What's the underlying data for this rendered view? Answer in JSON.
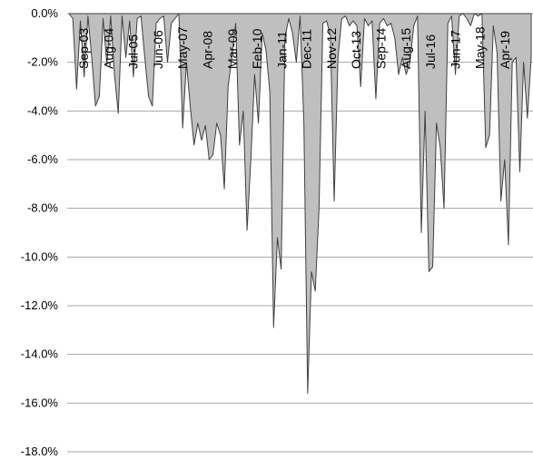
{
  "colors": {
    "fill": "#bfbfbf",
    "stroke": "#404040",
    "grid": "#a6a6a6",
    "background": "#ffffff"
  },
  "chart_data": {
    "type": "area",
    "title": "",
    "xlabel": "",
    "ylabel": "",
    "ylim": [
      -0.18,
      0.0
    ],
    "grid": true,
    "legend": "none",
    "y_ticks": [
      {
        "value": 0.0,
        "label": "0.0%"
      },
      {
        "value": -0.02,
        "label": "-2.0%"
      },
      {
        "value": -0.04,
        "label": "-4.0%"
      },
      {
        "value": -0.06,
        "label": "-6.0%"
      },
      {
        "value": -0.08,
        "label": "-8.0%"
      },
      {
        "value": -0.1,
        "label": "-10.0%"
      },
      {
        "value": -0.12,
        "label": "-12.0%"
      },
      {
        "value": -0.14,
        "label": "-14.0%"
      },
      {
        "value": -0.16,
        "label": "-16.0%"
      },
      {
        "value": -0.18,
        "label": "-18.0%"
      }
    ],
    "x_ticks": [
      "Sep-03",
      "Aug-04",
      "Jul-05",
      "Jun-06",
      "May-07",
      "Apr-08",
      "Mar-09",
      "Feb-10",
      "Jan-11",
      "Dec-11",
      "Nov-12",
      "Oct-13",
      "Sep-14",
      "Aug-15",
      "Jul-16",
      "Jun-17",
      "May-18",
      "Apr-19"
    ],
    "series": [
      {
        "values": [
          0,
          -0.002,
          -0.031,
          -0.003,
          -0.026,
          -0.001,
          -0.018,
          -0.038,
          -0.034,
          -0.002,
          -0.021,
          -0.001,
          -0.025,
          -0.041,
          -0.001,
          -0.018,
          -0.003,
          -0.026,
          -0.002,
          -0.001,
          -0.018,
          -0.034,
          -0.038,
          -0.004,
          -0.002,
          -0.001,
          -0.02,
          -0.004,
          -0.002,
          0,
          -0.047,
          -0.02,
          -0.038,
          -0.054,
          -0.045,
          -0.052,
          -0.046,
          -0.06,
          -0.058,
          -0.045,
          -0.05,
          -0.072,
          -0.03,
          -0.018,
          -0.004,
          -0.054,
          -0.04,
          -0.089,
          -0.06,
          -0.025,
          -0.045,
          -0.008,
          -0.015,
          -0.032,
          -0.129,
          -0.092,
          -0.105,
          -0.01,
          -0.002,
          -0.008,
          -0.02,
          -0.001,
          -0.045,
          -0.156,
          -0.106,
          -0.114,
          -0.08,
          -0.004,
          -0.003,
          -0.009,
          -0.077,
          -0.018,
          -0.002,
          -0.001,
          -0.005,
          -0.003,
          -0.005,
          -0.03,
          -0.002,
          -0.005,
          -0.003,
          -0.035,
          -0.004,
          -0.002,
          -0.005,
          -0.004,
          -0.01,
          -0.025,
          -0.018,
          -0.025,
          -0.02,
          -0.005,
          -0.001,
          -0.09,
          -0.04,
          -0.106,
          -0.104,
          -0.045,
          -0.055,
          -0.08,
          -0.004,
          -0.001,
          -0.025,
          -0.001,
          0,
          -0.002,
          -0.005,
          0,
          -0.001,
          0,
          -0.055,
          -0.05,
          -0.005,
          -0.016,
          -0.077,
          -0.06,
          -0.095,
          -0.02,
          -0.018,
          -0.065,
          -0.02,
          -0.043,
          -0.018
        ]
      }
    ]
  }
}
